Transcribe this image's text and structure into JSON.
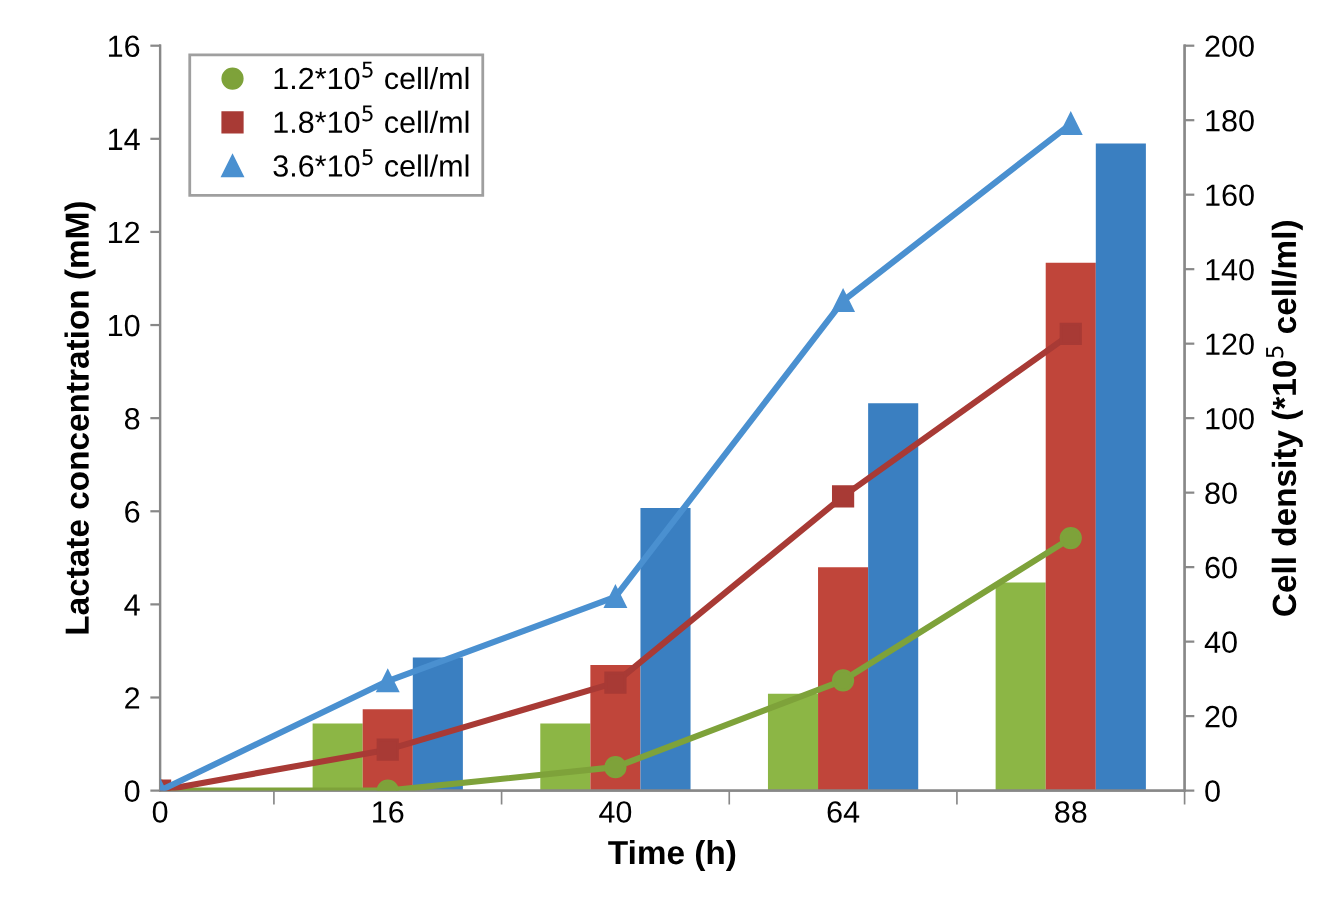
{
  "chart_data": {
    "type": "bar",
    "xlabel": "Time (h)",
    "ylabel": "Lactate concentration (mM)",
    "y2label": "Cell density (*10$^{5}$ cell/ml)",
    "categories": [
      "0",
      "16",
      "40",
      "64",
      "88"
    ],
    "ylim": [
      0,
      16
    ],
    "yticks": [
      0,
      2,
      4,
      6,
      8,
      10,
      12,
      14,
      16
    ],
    "y2lim": [
      0,
      200
    ],
    "y2ticks": [
      0,
      20,
      40,
      60,
      80,
      100,
      120,
      140,
      160,
      180,
      200
    ],
    "grid": false,
    "legend": "top left",
    "series": [
      {
        "color": "#8cb645",
        "values": [
          0,
          1.44,
          1.44,
          2.08,
          4.47
        ]
      },
      {
        "color": "#c0453a",
        "values": [
          0,
          1.75,
          2.7,
          4.8,
          11.34
        ]
      },
      {
        "color": "#3a7fc1",
        "values": [
          0,
          2.86,
          6.07,
          8.32,
          13.9
        ]
      },
      {
        "type": "line",
        "axis": "y2",
        "name": "1.2*10$^{5}$ cell/ml",
        "marker": "circle",
        "color": "#7ea23a",
        "values": [
          0,
          0,
          6.3,
          29.6,
          67.8
        ]
      },
      {
        "type": "line",
        "axis": "y2",
        "name": "1.8*10$^{5}$ cell/ml",
        "marker": "square",
        "color": "#a83a35",
        "values": [
          0,
          11,
          29,
          79,
          122.6
        ]
      },
      {
        "type": "line",
        "axis": "y2",
        "name": "3.6*10$^{5}$ cell/ml",
        "marker": "triangle",
        "color": "#4a90d0",
        "values": [
          0,
          29.4,
          52,
          131.5,
          179
        ]
      }
    ]
  }
}
